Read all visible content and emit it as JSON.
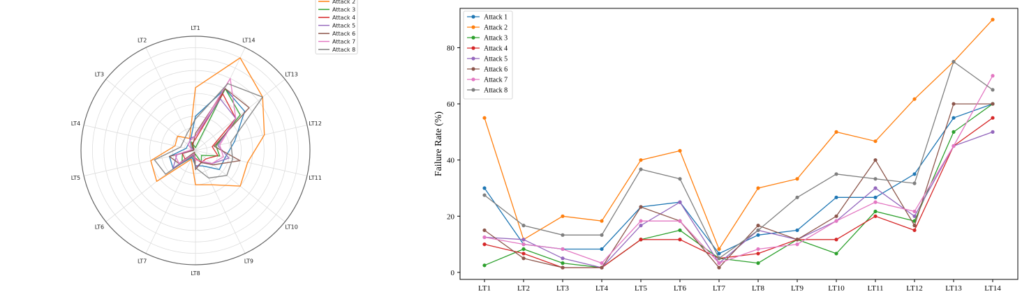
{
  "chart_data": [
    {
      "type": "radar",
      "categories": [
        "LT1",
        "LT2",
        "LT3",
        "LT4",
        "LT5",
        "LT6",
        "LT7",
        "LT8",
        "LT9",
        "LT10",
        "LT11",
        "LT12",
        "LT13",
        "LT14"
      ],
      "rmax": 100,
      "grid": true,
      "legend_entries_visible": [
        "Attack 2",
        "Attack 3",
        "Attack 4",
        "Attack 5",
        "Attack 6",
        "Attack 7",
        "Attack 8"
      ],
      "legend_position": "top-right"
    },
    {
      "type": "line",
      "categories": [
        "LT1",
        "LT2",
        "LT3",
        "LT4",
        "LT5",
        "LT6",
        "LT7",
        "LT8",
        "LT9",
        "LT10",
        "LT11",
        "LT12",
        "LT13",
        "LT14"
      ],
      "ylabel": "Failure Rate (%)",
      "ylim": [
        -2.5,
        94
      ],
      "yticks": [
        0,
        20,
        40,
        60,
        80
      ],
      "grid": false,
      "legend_position": "top-left",
      "series": [
        {
          "name": "Attack 1",
          "color": "#1f77b4",
          "values": [
            30,
            10,
            8.3,
            8.3,
            23.3,
            25,
            6.7,
            13.3,
            15,
            26.7,
            26.7,
            35,
            55,
            60
          ]
        },
        {
          "name": "Attack 2",
          "color": "#ff7f0e",
          "values": [
            55,
            11.7,
            20,
            18.3,
            40,
            43.3,
            8.3,
            30,
            33.3,
            50,
            46.7,
            61.7,
            75,
            90
          ]
        },
        {
          "name": "Attack 3",
          "color": "#2ca02c",
          "values": [
            2.5,
            8.3,
            3.3,
            1.7,
            11.7,
            15,
            5,
            3.3,
            11.7,
            6.7,
            21.7,
            18.3,
            50,
            60
          ]
        },
        {
          "name": "Attack 4",
          "color": "#d62728",
          "values": [
            10,
            6.7,
            1.7,
            1.7,
            11.7,
            11.7,
            5,
            6.7,
            11.7,
            11.7,
            20,
            15,
            45,
            55
          ]
        },
        {
          "name": "Attack 5",
          "color": "#9467bd",
          "values": [
            12.5,
            11.7,
            5,
            1.7,
            16.7,
            25,
            3.3,
            15,
            11.7,
            18.3,
            30,
            20,
            45,
            50
          ]
        },
        {
          "name": "Attack 6",
          "color": "#8c564b",
          "values": [
            15,
            5,
            1.7,
            1.7,
            23.3,
            18.3,
            1.7,
            16.7,
            11.7,
            20,
            40,
            16.7,
            60,
            60
          ]
        },
        {
          "name": "Attack 7",
          "color": "#e377c2",
          "values": [
            12.5,
            10,
            8.3,
            3.3,
            18.3,
            18.3,
            3.3,
            8.3,
            10,
            18.3,
            25,
            21.7,
            45,
            70
          ]
        },
        {
          "name": "Attack 8",
          "color": "#7f7f7f",
          "values": [
            27.5,
            16.7,
            13.3,
            13.3,
            36.7,
            33.3,
            5,
            15,
            26.7,
            35,
            33.3,
            31.7,
            75,
            65
          ]
        }
      ]
    }
  ]
}
